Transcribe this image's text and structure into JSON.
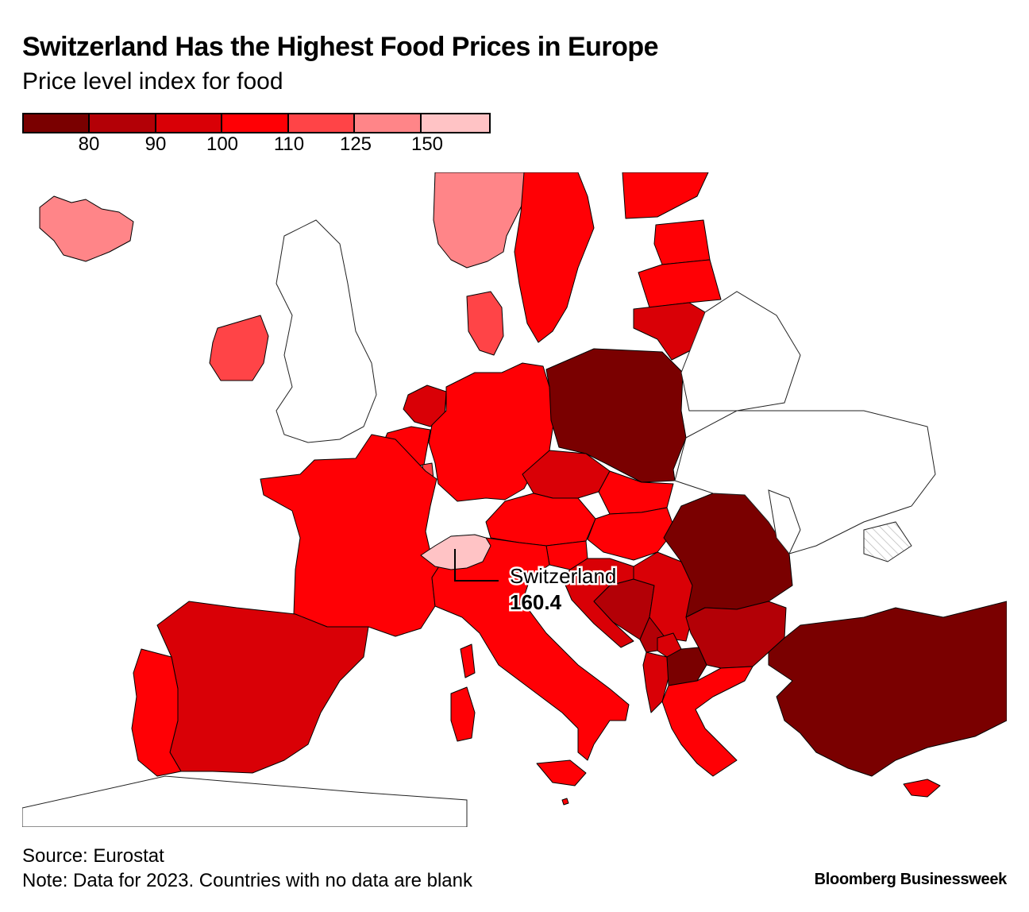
{
  "title": "Switzerland Has the Highest Food Prices in Europe",
  "subtitle": "Price level index for food",
  "legend": {
    "colors": [
      "#7a0000",
      "#b30006",
      "#d90006",
      "#ff0005",
      "#ff4447",
      "#ff8588",
      "#ffc3c5"
    ],
    "ticks": [
      "80",
      "90",
      "100",
      "110",
      "125",
      "150"
    ]
  },
  "colors": {
    "no_data": "#ffffff",
    "border": "#000000"
  },
  "countries": [
    {
      "name": "Iceland",
      "bin": 5
    },
    {
      "name": "Norway",
      "bin": 5
    },
    {
      "name": "Sweden",
      "bin": 3
    },
    {
      "name": "Finland",
      "bin": 3
    },
    {
      "name": "Estonia",
      "bin": 3
    },
    {
      "name": "Latvia",
      "bin": 3
    },
    {
      "name": "Lithuania",
      "bin": 2
    },
    {
      "name": "Denmark",
      "bin": 4
    },
    {
      "name": "Ireland",
      "bin": 4
    },
    {
      "name": "Netherlands",
      "bin": 2
    },
    {
      "name": "Belgium",
      "bin": 3
    },
    {
      "name": "Luxembourg",
      "bin": 4
    },
    {
      "name": "Germany",
      "bin": 3
    },
    {
      "name": "France",
      "bin": 3
    },
    {
      "name": "Poland",
      "bin": 0
    },
    {
      "name": "Czechia",
      "bin": 2
    },
    {
      "name": "Slovakia",
      "bin": 3
    },
    {
      "name": "Austria",
      "bin": 3
    },
    {
      "name": "Hungary",
      "bin": 3
    },
    {
      "name": "Slovenia",
      "bin": 3
    },
    {
      "name": "Croatia",
      "bin": 2
    },
    {
      "name": "Bosnia and Herzegovina",
      "bin": 1
    },
    {
      "name": "Serbia",
      "bin": 2
    },
    {
      "name": "Montenegro",
      "bin": 1
    },
    {
      "name": "Albania",
      "bin": 2
    },
    {
      "name": "North Macedonia",
      "bin": 0
    },
    {
      "name": "Kosovo",
      "bin": 2
    },
    {
      "name": "Romania",
      "bin": 0
    },
    {
      "name": "Bulgaria",
      "bin": 1
    },
    {
      "name": "Greece",
      "bin": 3
    },
    {
      "name": "Turkey",
      "bin": 0
    },
    {
      "name": "Cyprus",
      "bin": 3
    },
    {
      "name": "Italy",
      "bin": 3
    },
    {
      "name": "Malta",
      "bin": 3
    },
    {
      "name": "Spain",
      "bin": 2
    },
    {
      "name": "Portugal",
      "bin": 3
    },
    {
      "name": "Switzerland",
      "bin": 6
    }
  ],
  "callout": {
    "name": "Switzerland",
    "value": "160.4"
  },
  "source": "Source: Eurostat",
  "note": "Note: Data for 2023. Countries with no data are blank",
  "brand": "Bloomberg Businessweek"
}
